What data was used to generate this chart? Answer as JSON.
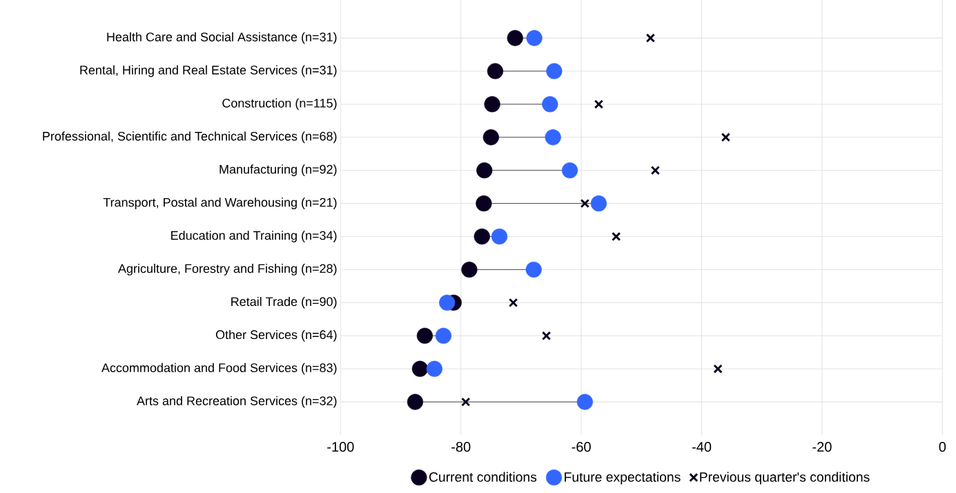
{
  "chart_data": {
    "type": "scatter",
    "orientation": "horizontal",
    "categories": [
      "Health Care and Social Assistance (n=31)",
      "Rental, Hiring and Real Estate Services (n=31)",
      "Construction (n=115)",
      "Professional, Scientific and Technical Services (n=68)",
      "Manufacturing (n=92)",
      "Transport, Postal and Warehousing (n=21)",
      "Education and Training (n=34)",
      "Agriculture, Forestry and Fishing (n=28)",
      "Retail Trade (n=90)",
      "Other Services (n=64)",
      "Accommodation and Food Services (n=83)",
      "Arts and Recreation Services (n=32)"
    ],
    "series": [
      {
        "name": "Current conditions",
        "color": "#0a0020",
        "marker": "circle",
        "values": [
          -71.0,
          -74.3,
          -74.8,
          -75.0,
          -76.1,
          -76.2,
          -76.5,
          -78.6,
          -81.2,
          -86.0,
          -86.8,
          -87.6
        ]
      },
      {
        "name": "Future expectations",
        "color": "#3366ff",
        "marker": "circle",
        "values": [
          -67.8,
          -64.5,
          -65.2,
          -64.7,
          -61.9,
          -57.1,
          -73.6,
          -67.9,
          -82.3,
          -82.9,
          -84.4,
          -59.4
        ]
      },
      {
        "name": "Previous quarter's conditions",
        "color": "#0a0020",
        "marker": "cross",
        "values": [
          -48.5,
          null,
          -57.1,
          -36.0,
          -47.7,
          -59.4,
          -54.2,
          null,
          -71.3,
          -65.8,
          -37.3,
          -79.2
        ]
      }
    ],
    "xlim": [
      -100,
      0
    ],
    "xticks": [
      -100,
      -80,
      -60,
      -40,
      -20,
      0
    ],
    "grid": true,
    "legend": "bottom"
  }
}
